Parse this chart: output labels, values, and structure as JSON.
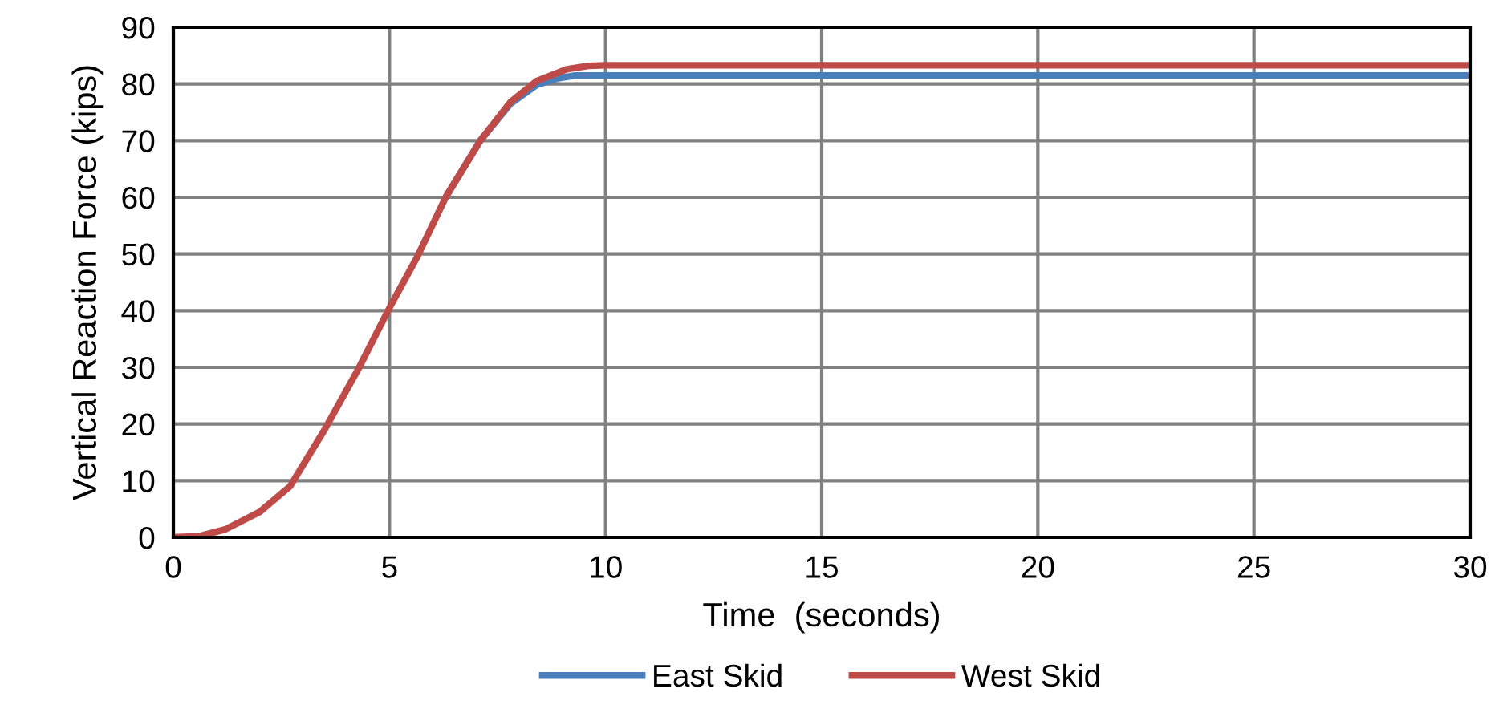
{
  "chart_data": {
    "type": "line",
    "xlabel": "Time  (seconds)",
    "ylabel": "Vertical Reaction Force (kips)",
    "xlim": [
      0,
      30
    ],
    "ylim": [
      0,
      90
    ],
    "xticks": [
      0,
      5,
      10,
      15,
      20,
      25,
      30
    ],
    "yticks": [
      0,
      10,
      20,
      30,
      40,
      50,
      60,
      70,
      80,
      90
    ],
    "grid": true,
    "legend": "bottom",
    "line_style": "solid",
    "marker": "none",
    "series": [
      {
        "name": "East Skid",
        "color": "#4a7ebb",
        "x": [
          6.3,
          7.1,
          7.8,
          8.4,
          8.9,
          9.3,
          10,
          15,
          20,
          25,
          30
        ],
        "values": [
          60,
          70,
          76.5,
          79.8,
          81,
          81.5,
          81.5,
          81.5,
          81.5,
          81.5,
          81.5
        ]
      },
      {
        "name": "West Skid",
        "color": "#be4b48",
        "x": [
          0,
          0.6,
          1.2,
          2,
          2.7,
          3.5,
          4.3,
          5,
          5.65,
          6.3,
          7.1,
          7.8,
          8.4,
          9.1,
          9.6,
          10,
          15,
          20,
          25,
          30
        ],
        "values": [
          0,
          0.2,
          1.4,
          4.5,
          9,
          19,
          30,
          40.5,
          49.6,
          60,
          70,
          76.8,
          80.5,
          82.6,
          83.2,
          83.3,
          83.3,
          83.3,
          83.3,
          83.3
        ]
      }
    ]
  }
}
